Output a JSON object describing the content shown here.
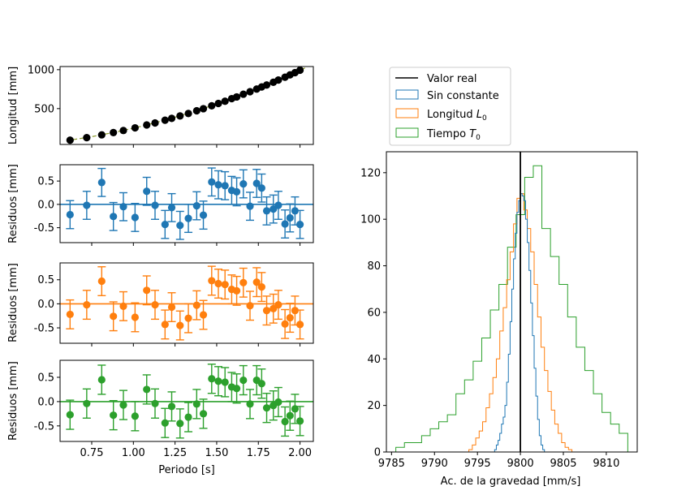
{
  "colors": {
    "blue": "#1f77b4",
    "orange": "#ff7f0e",
    "green": "#2ca02c",
    "black": "#000000"
  },
  "chart_data": [
    {
      "id": "length",
      "type": "scatter",
      "ylabel": "Longitud [mm]",
      "xlim": [
        0.56,
        2.08
      ],
      "ylim": [
        40,
        1040
      ],
      "yticks": [
        500,
        1000
      ],
      "x": [
        0.62,
        0.72,
        0.81,
        0.88,
        0.94,
        1.01,
        1.08,
        1.13,
        1.19,
        1.23,
        1.28,
        1.33,
        1.38,
        1.42,
        1.47,
        1.51,
        1.55,
        1.59,
        1.62,
        1.66,
        1.7,
        1.74,
        1.77,
        1.8,
        1.84,
        1.87,
        1.91,
        1.94,
        1.97,
        2.0
      ],
      "y": [
        95,
        127,
        163,
        192,
        219,
        253,
        290,
        316,
        351,
        375,
        406,
        437,
        472,
        499,
        536,
        566,
        595,
        628,
        650,
        685,
        717,
        751,
        778,
        803,
        838,
        867,
        903,
        933,
        962,
        993
      ],
      "fit_x": [
        0.6,
        0.75,
        0.9,
        1.05,
        1.2,
        1.35,
        1.5,
        1.65,
        1.8,
        1.95,
        2.03
      ],
      "fit_y": [
        89,
        140,
        201,
        274,
        358,
        452,
        558,
        676,
        804,
        944,
        1022
      ]
    },
    {
      "id": "res_sin",
      "type": "errorbar",
      "ylabel": "Residuos [mm]",
      "xlim": [
        0.56,
        2.08
      ],
      "ylim": [
        -0.82,
        0.85
      ],
      "yticks": [
        -0.5,
        0.0,
        0.5
      ],
      "x": [
        0.62,
        0.72,
        0.81,
        0.88,
        0.94,
        1.01,
        1.08,
        1.13,
        1.19,
        1.23,
        1.28,
        1.33,
        1.38,
        1.42,
        1.47,
        1.51,
        1.55,
        1.59,
        1.62,
        1.66,
        1.7,
        1.74,
        1.77,
        1.8,
        1.84,
        1.87,
        1.91,
        1.94,
        1.97,
        2.0
      ],
      "y": [
        -0.22,
        -0.02,
        0.47,
        -0.26,
        -0.05,
        -0.28,
        0.28,
        -0.02,
        -0.43,
        -0.07,
        -0.45,
        -0.3,
        -0.03,
        -0.23,
        0.48,
        0.42,
        0.4,
        0.3,
        0.27,
        0.44,
        -0.04,
        0.45,
        0.35,
        -0.14,
        -0.1,
        -0.02,
        -0.42,
        -0.29,
        -0.14,
        -0.43
      ],
      "err": 0.3
    },
    {
      "id": "res_l0",
      "type": "errorbar",
      "ylabel": "Residuos [mm]",
      "xlim": [
        0.56,
        2.08
      ],
      "ylim": [
        -0.82,
        0.85
      ],
      "yticks": [
        -0.5,
        0.0,
        0.5
      ],
      "x": [
        0.62,
        0.72,
        0.81,
        0.88,
        0.94,
        1.01,
        1.08,
        1.13,
        1.19,
        1.23,
        1.28,
        1.33,
        1.38,
        1.42,
        1.47,
        1.51,
        1.55,
        1.59,
        1.62,
        1.66,
        1.7,
        1.74,
        1.77,
        1.8,
        1.84,
        1.87,
        1.91,
        1.94,
        1.97,
        2.0
      ],
      "y": [
        -0.22,
        -0.02,
        0.47,
        -0.26,
        -0.05,
        -0.28,
        0.28,
        -0.02,
        -0.43,
        -0.07,
        -0.45,
        -0.3,
        -0.03,
        -0.23,
        0.48,
        0.42,
        0.4,
        0.3,
        0.27,
        0.44,
        -0.04,
        0.45,
        0.35,
        -0.14,
        -0.1,
        -0.02,
        -0.42,
        -0.29,
        -0.14,
        -0.43
      ],
      "err": 0.3
    },
    {
      "id": "res_t0",
      "type": "errorbar",
      "ylabel": "Residuos [mm]",
      "xlabel": "Periodo [s]",
      "xlim": [
        0.56,
        2.08
      ],
      "ylim": [
        -0.82,
        0.85
      ],
      "yticks": [
        -0.5,
        0.0,
        0.5
      ],
      "xticks": [
        0.75,
        1.0,
        1.25,
        1.5,
        1.75,
        2.0
      ],
      "xticklabels": [
        "0.75",
        "1.00",
        "1.25",
        "1.50",
        "1.75",
        "2.00"
      ],
      "x": [
        0.62,
        0.72,
        0.81,
        0.88,
        0.94,
        1.01,
        1.08,
        1.13,
        1.19,
        1.23,
        1.28,
        1.33,
        1.38,
        1.42,
        1.47,
        1.51,
        1.55,
        1.59,
        1.62,
        1.66,
        1.7,
        1.74,
        1.77,
        1.8,
        1.84,
        1.87,
        1.91,
        1.94,
        1.97,
        2.0
      ],
      "y": [
        -0.27,
        -0.04,
        0.45,
        -0.28,
        -0.07,
        -0.3,
        0.25,
        -0.04,
        -0.44,
        -0.1,
        -0.45,
        -0.32,
        -0.05,
        -0.25,
        0.47,
        0.42,
        0.4,
        0.3,
        0.27,
        0.44,
        -0.05,
        0.44,
        0.37,
        -0.13,
        -0.08,
        -0.01,
        -0.41,
        -0.29,
        -0.15,
        -0.4
      ],
      "err": 0.3
    },
    {
      "id": "hist",
      "type": "histogram",
      "xlabel": "Ac. de la gravedad [mm/s]",
      "xlim": [
        9784.4,
        9813.6
      ],
      "ylim": [
        0,
        129
      ],
      "xticks": [
        9785,
        9790,
        9795,
        9800,
        9805,
        9810
      ],
      "yticks": [
        0,
        20,
        40,
        60,
        80,
        100,
        120
      ],
      "true_value": 9800,
      "legend": {
        "location": "upper-right-outside",
        "entries": [
          "Valor real",
          "Sin constante",
          "Longitud L0",
          "Tiempo T0"
        ]
      },
      "series": [
        {
          "name": "Sin constante",
          "color": "#1f77b4",
          "start": 9797.0,
          "bin": 0.2,
          "counts": [
            1,
            3,
            5,
            8,
            12,
            15,
            20,
            30,
            42,
            56,
            70,
            83,
            94,
            103,
            108,
            111,
            110,
            108,
            100,
            90,
            78,
            64,
            50,
            36,
            24,
            14,
            7,
            3,
            1,
            0
          ]
        },
        {
          "name": "Longitud L0",
          "color": "#ff7f0e",
          "start": 9794.0,
          "bin": 0.4,
          "counts": [
            1,
            3,
            6,
            9,
            13,
            19,
            25,
            32,
            40,
            52,
            62,
            74,
            86,
            98,
            109,
            111,
            104,
            96,
            86,
            72,
            58,
            45,
            35,
            26,
            18,
            12,
            8,
            4,
            2,
            1
          ]
        },
        {
          "name": "Tiempo T0",
          "color": "#2ca02c",
          "start": 9785.5,
          "bin": 1.0,
          "counts": [
            2,
            4,
            4,
            7,
            10,
            13,
            16,
            25,
            31,
            39,
            49,
            61,
            72,
            88,
            102,
            118,
            123,
            96,
            84,
            72,
            58,
            45,
            35,
            25,
            17,
            12,
            8
          ]
        }
      ]
    }
  ],
  "legend_labels": {
    "real": "Valor real",
    "sin": "Sin constante",
    "l0_text": "Longitud ",
    "l0_var": "L",
    "l0_sub": "0",
    "t0_text": "Tiempo ",
    "t0_var": "T",
    "t0_sub": "0"
  }
}
